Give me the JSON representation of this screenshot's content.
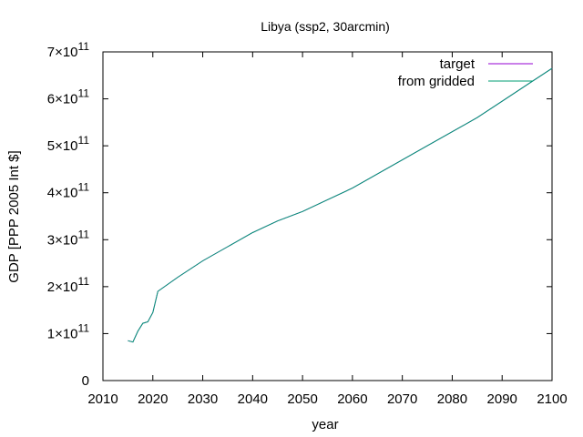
{
  "chart_data": {
    "type": "line",
    "title": "Libya (ssp2, 30arcmin)",
    "xlabel": "year",
    "ylabel": "GDP [PPP 2005 Int $]",
    "xlim": [
      2010,
      2100
    ],
    "ylim": [
      0,
      700000000000
    ],
    "xticks": [
      "2010",
      "2020",
      "2030",
      "2040",
      "2050",
      "2060",
      "2070",
      "2080",
      "2090",
      "2100"
    ],
    "yticks": [
      {
        "value": 0,
        "mantissa": "0",
        "exp": ""
      },
      {
        "value": 100000000000,
        "mantissa": "1×10",
        "exp": "11"
      },
      {
        "value": 200000000000,
        "mantissa": "2×10",
        "exp": "11"
      },
      {
        "value": 300000000000,
        "mantissa": "3×10",
        "exp": "11"
      },
      {
        "value": 400000000000,
        "mantissa": "4×10",
        "exp": "11"
      },
      {
        "value": 500000000000,
        "mantissa": "5×10",
        "exp": "11"
      },
      {
        "value": 600000000000,
        "mantissa": "6×10",
        "exp": "11"
      },
      {
        "value": 700000000000,
        "mantissa": "7×10",
        "exp": "11"
      }
    ],
    "grid": false,
    "legend_position": "top-right",
    "series": [
      {
        "name": "target",
        "color": "#9400d3",
        "x": [
          2015,
          2016,
          2017,
          2018,
          2019,
          2020,
          2021,
          2025,
          2030,
          2035,
          2040,
          2045,
          2050,
          2055,
          2060,
          2065,
          2070,
          2075,
          2080,
          2085,
          2090,
          2095,
          2100
        ],
        "y": [
          85000000000,
          82000000000,
          105000000000,
          122000000000,
          125000000000,
          145000000000,
          190000000000,
          220000000000,
          255000000000,
          285000000000,
          315000000000,
          340000000000,
          360000000000,
          385000000000,
          410000000000,
          440000000000,
          470000000000,
          500000000000,
          530000000000,
          560000000000,
          595000000000,
          630000000000,
          665000000000
        ]
      },
      {
        "name": "from gridded",
        "color": "#009e73",
        "x": [
          2015,
          2016,
          2017,
          2018,
          2019,
          2020,
          2021,
          2025,
          2030,
          2035,
          2040,
          2045,
          2050,
          2055,
          2060,
          2065,
          2070,
          2075,
          2080,
          2085,
          2090,
          2095,
          2100
        ],
        "y": [
          85000000000,
          82000000000,
          105000000000,
          122000000000,
          125000000000,
          145000000000,
          190000000000,
          220000000000,
          255000000000,
          285000000000,
          315000000000,
          340000000000,
          360000000000,
          385000000000,
          410000000000,
          440000000000,
          470000000000,
          500000000000,
          530000000000,
          560000000000,
          595000000000,
          630000000000,
          665000000000
        ]
      }
    ]
  }
}
